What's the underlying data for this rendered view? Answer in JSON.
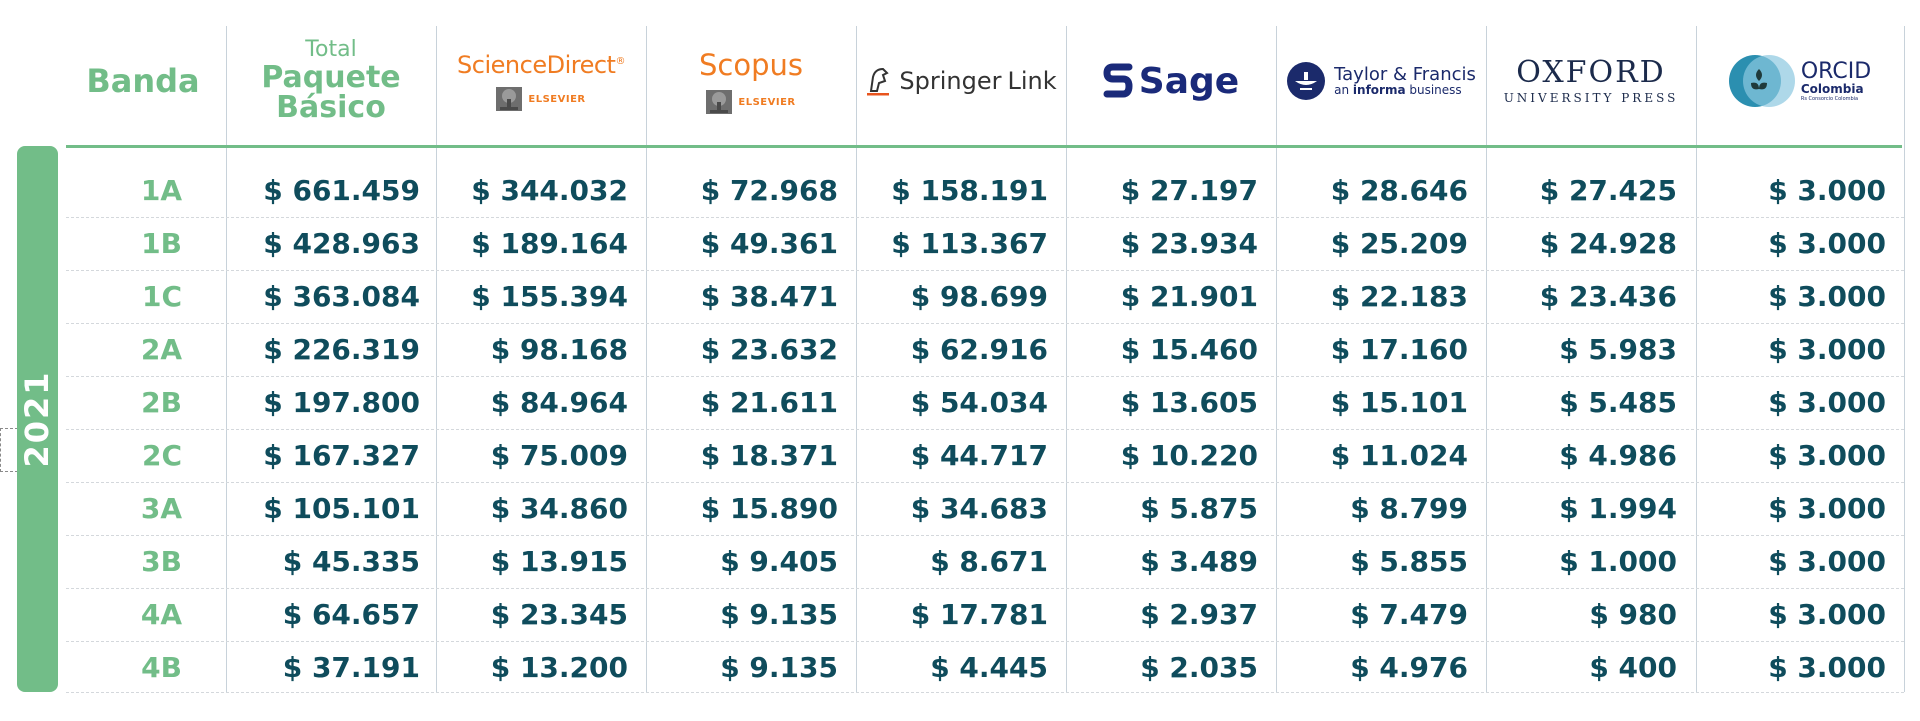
{
  "year": "2021",
  "headers": {
    "banda": "Banda",
    "total_small": "Total",
    "total_line1": "Paquete",
    "total_line2": "Básico",
    "sciencedirect": "ScienceDirect",
    "sciencedirect_reg": "®",
    "elsevier": "ELSEVIER",
    "scopus": "Scopus",
    "springer_main": "Springer",
    "springer_sub": "Link",
    "sage": "Sage",
    "tf_main": "Taylor & Francis",
    "tf_sub_pre": "an ",
    "tf_sub_bold": "informa",
    "tf_sub_post": " business",
    "oxford_main": "OXFORD",
    "oxford_sub": "UNIVERSITY PRESS",
    "orcid_main": "ORCID",
    "orcid_sub": "Colombia",
    "orcid_tiny": "Rs Consorcio Colombia"
  },
  "colors": {
    "green": "#72bd88",
    "value": "#0f4c5c",
    "elsevier_orange": "#f07c22",
    "sage_blue": "#1a2a7a"
  },
  "rows": [
    {
      "band": "1A",
      "values": [
        "$ 661.459",
        "$ 344.032",
        "$ 72.968",
        "$ 158.191",
        "$ 27.197",
        "$ 28.646",
        "$ 27.425",
        "$ 3.000"
      ]
    },
    {
      "band": "1B",
      "values": [
        "$ 428.963",
        "$ 189.164",
        "$ 49.361",
        "$ 113.367",
        "$ 23.934",
        "$ 25.209",
        "$ 24.928",
        "$ 3.000"
      ]
    },
    {
      "band": "1C",
      "values": [
        "$ 363.084",
        "$ 155.394",
        "$ 38.471",
        "$ 98.699",
        "$ 21.901",
        "$ 22.183",
        "$ 23.436",
        "$ 3.000"
      ]
    },
    {
      "band": "2A",
      "values": [
        "$ 226.319",
        "$ 98.168",
        "$ 23.632",
        "$ 62.916",
        "$ 15.460",
        "$ 17.160",
        "$ 5.983",
        "$ 3.000"
      ]
    },
    {
      "band": "2B",
      "values": [
        "$ 197.800",
        "$ 84.964",
        "$ 21.611",
        "$ 54.034",
        "$ 13.605",
        "$ 15.101",
        "$ 5.485",
        "$ 3.000"
      ]
    },
    {
      "band": "2C",
      "values": [
        "$ 167.327",
        "$ 75.009",
        "$ 18.371",
        "$ 44.717",
        "$ 10.220",
        "$ 11.024",
        "$ 4.986",
        "$ 3.000"
      ]
    },
    {
      "band": "3A",
      "values": [
        "$ 105.101",
        "$ 34.860",
        "$ 15.890",
        "$ 34.683",
        "$ 5.875",
        "$ 8.799",
        "$ 1.994",
        "$ 3.000"
      ]
    },
    {
      "band": "3B",
      "values": [
        "$ 45.335",
        "$ 13.915",
        "$ 9.405",
        "$ 8.671",
        "$ 3.489",
        "$ 5.855",
        "$ 1.000",
        "$ 3.000"
      ]
    },
    {
      "band": "4A",
      "values": [
        "$ 64.657",
        "$ 23.345",
        "$ 9.135",
        "$ 17.781",
        "$ 2.937",
        "$ 7.479",
        "$ 980",
        "$ 3.000"
      ]
    },
    {
      "band": "4B",
      "values": [
        "$ 37.191",
        "$ 13.200",
        "$ 9.135",
        "$ 4.445",
        "$ 2.035",
        "$ 4.976",
        "$ 400",
        "$ 3.000"
      ]
    }
  ]
}
